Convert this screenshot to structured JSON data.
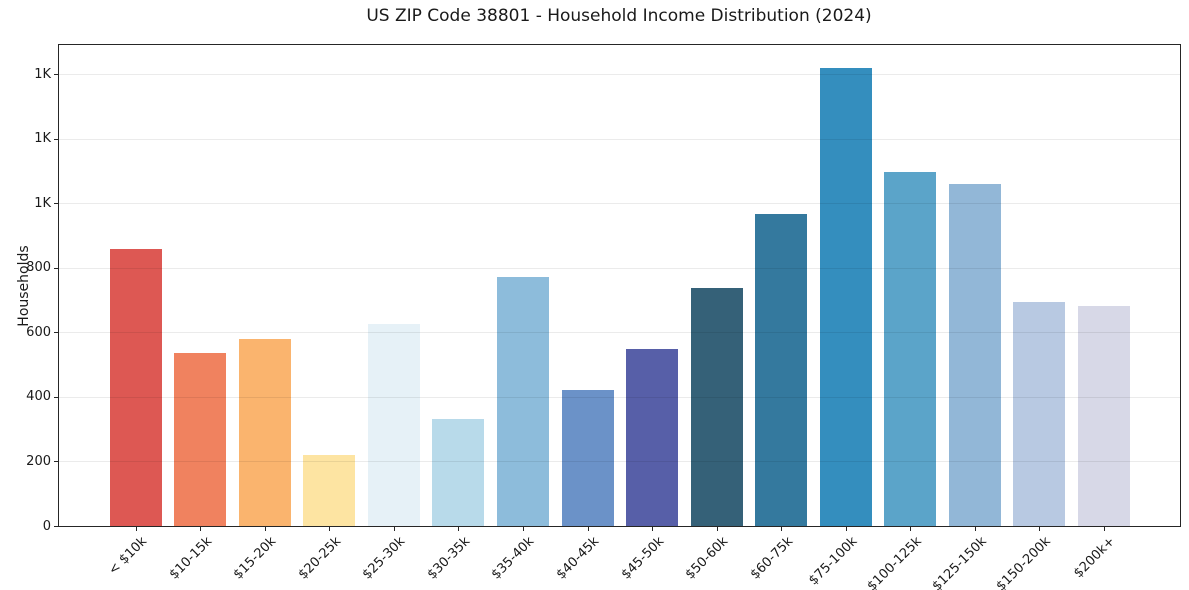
{
  "title": "US ZIP Code 38801 - Household Income Distribution (2024)",
  "chart_data": {
    "type": "bar",
    "title": "US ZIP Code 38801 - Household Income Distribution (2024)",
    "xlabel": "",
    "ylabel": "Households",
    "ylim": [
      0,
      1490
    ],
    "grid": "horizontal-light",
    "legend": "none",
    "categories": [
      "< $10k",
      "$10-15k",
      "$15-20k",
      "$20-25k",
      "$25-30k",
      "$30-35k",
      "$35-40k",
      "$40-45k",
      "$45-50k",
      "$50-60k",
      "$60-75k",
      "$75-100k",
      "$100-125k",
      "$125-150k",
      "$150-200k",
      "$200k+"
    ],
    "values": [
      858,
      535,
      578,
      221,
      625,
      332,
      772,
      421,
      549,
      736,
      968,
      1419,
      1097,
      1058,
      693,
      683
    ],
    "bar_colors": [
      "#dd5853",
      "#f0825f",
      "#fab46e",
      "#fde4a2",
      "#e6f1f7",
      "#b8daea",
      "#8dbcdb",
      "#6b92c8",
      "#575fa8",
      "#356178",
      "#34799e",
      "#348ebe",
      "#5ba4c9",
      "#92b7d7",
      "#b8c9e2",
      "#d7d8e7"
    ],
    "y_ticks": {
      "values": [
        0,
        200,
        400,
        600,
        800,
        1000,
        1200,
        1400
      ],
      "labels": [
        "0",
        "200",
        "400",
        "600",
        "800",
        "1K",
        "1K",
        "1K"
      ]
    }
  }
}
